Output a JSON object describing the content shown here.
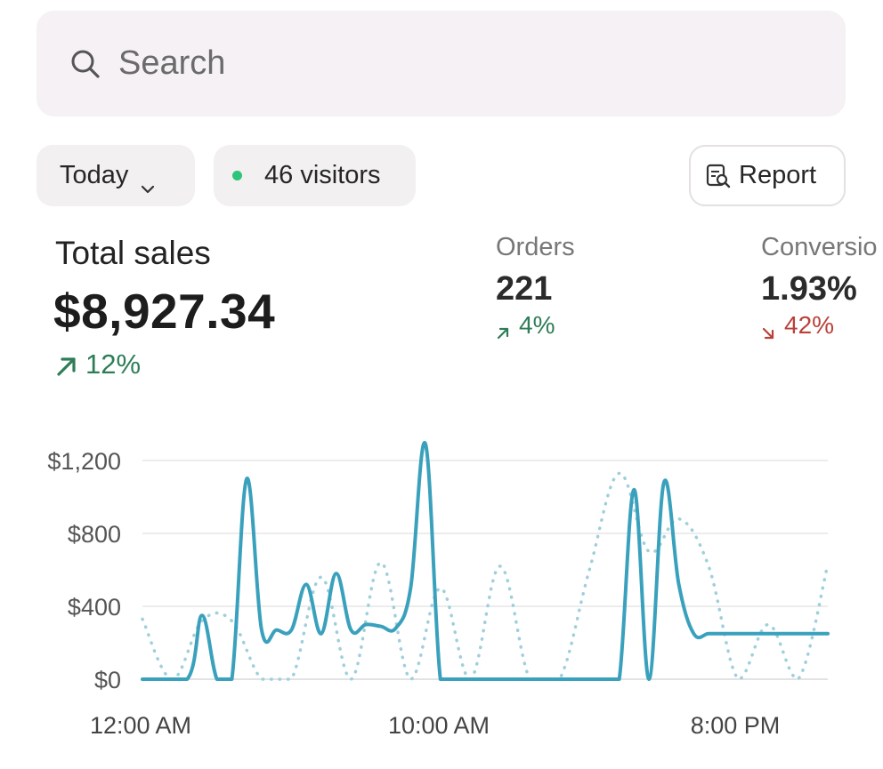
{
  "search": {
    "placeholder": "Search",
    "icon": "search-icon"
  },
  "filters": {
    "date_range": "Today",
    "visitors_label": "46 visitors",
    "visitors_dot_color": "#2ec47a"
  },
  "report_button": {
    "label": "Report",
    "icon": "report-search-icon"
  },
  "metrics": {
    "total_sales": {
      "label": "Total sales",
      "value": "$8,927.34",
      "change": "12%",
      "direction": "up",
      "change_color": "#2e7d57"
    },
    "orders": {
      "label": "Orders",
      "value": "221",
      "change": "4%",
      "direction": "up",
      "change_color": "#2e7d57"
    },
    "conversion": {
      "label": "Conversio",
      "value": "1.93%",
      "change": "42%",
      "direction": "down",
      "change_color": "#b9413a"
    }
  },
  "chart_data": {
    "type": "line",
    "y_tick_labels": [
      "$0",
      "$400",
      "$800",
      "$1,200"
    ],
    "y_ticks": [
      0,
      400,
      800,
      1200
    ],
    "x_tick_labels": [
      "12:00 AM",
      "10:00 AM",
      "8:00 PM"
    ],
    "ylim": [
      0,
      1300
    ],
    "grid": true,
    "legend": "none",
    "series": [
      {
        "style": "solid",
        "color": "#3aa1bd",
        "x": [
          0,
          1.5,
          2,
          2.5,
          3,
          3.5,
          4,
          4.5,
          5,
          5.5,
          6,
          6.5,
          7,
          7.5,
          8,
          8.5,
          9,
          9.5,
          10,
          10.5,
          11,
          11.5,
          12,
          12.5,
          13,
          13.5,
          14,
          14.5,
          15,
          15.5,
          16,
          16.5,
          17,
          17.5,
          18,
          18.5,
          19,
          19.5,
          20,
          20.5,
          21,
          21.5,
          22,
          22.5,
          23
        ],
        "values": [
          0,
          0,
          350,
          0,
          0,
          1100,
          270,
          270,
          270,
          520,
          250,
          580,
          270,
          300,
          290,
          280,
          500,
          1290,
          0,
          0,
          0,
          0,
          0,
          0,
          0,
          0,
          0,
          0,
          0,
          0,
          0,
          1040,
          0,
          1080,
          520,
          250,
          250,
          250,
          250,
          250,
          250,
          250,
          250,
          250,
          250
        ]
      },
      {
        "style": "dotted",
        "color": "#9fcfdc",
        "x": [
          0,
          1,
          2,
          3,
          4,
          5,
          6,
          7,
          8,
          9,
          10,
          11,
          12,
          13,
          14,
          15,
          16,
          17,
          18,
          19,
          20,
          21,
          22,
          23
        ],
        "values": [
          330,
          0,
          320,
          320,
          0,
          0,
          560,
          0,
          640,
          0,
          500,
          0,
          620,
          0,
          0,
          600,
          1130,
          700,
          880,
          620,
          0,
          300,
          0,
          630
        ]
      }
    ]
  }
}
